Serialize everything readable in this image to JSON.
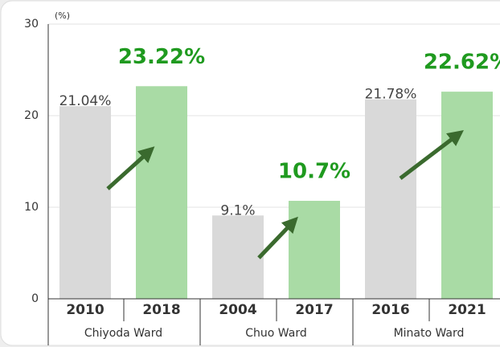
{
  "chart_data": {
    "type": "bar",
    "y_unit": "(%)",
    "categories": [
      "2010",
      "2018",
      "2004",
      "2017",
      "2016",
      "2021"
    ],
    "groups": [
      "Chiyoda Ward",
      "Chuo Ward",
      "Minato Ward"
    ],
    "values": [
      21.04,
      23.22,
      9.1,
      10.7,
      21.78,
      22.62
    ],
    "value_labels": [
      "21.04%",
      "23.22%",
      "9.1%",
      "10.7%",
      "21.78%",
      "22.62%"
    ],
    "colors": [
      "#d9d9d9",
      "#a9dba5",
      "#d9d9d9",
      "#a9dba5",
      "#d9d9d9",
      "#a9dba5"
    ],
    "ylim": [
      0,
      30
    ],
    "yticks": [
      0,
      10,
      20,
      30
    ],
    "grid": true
  }
}
